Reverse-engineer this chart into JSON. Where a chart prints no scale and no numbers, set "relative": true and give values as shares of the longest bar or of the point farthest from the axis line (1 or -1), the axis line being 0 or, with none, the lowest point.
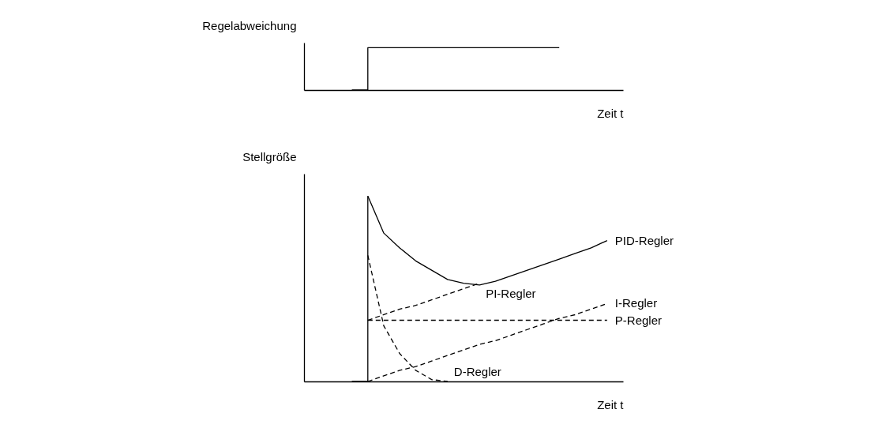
{
  "chart_data": [
    {
      "type": "step",
      "relative": true,
      "ylabel": "Regelabweichung",
      "xlabel": "Zeit t",
      "categories": [
        null,
        null,
        null,
        null,
        null,
        null,
        null,
        null,
        null,
        null,
        null,
        null,
        null,
        null,
        null,
        null,
        null,
        null,
        null,
        null,
        null
      ],
      "series": [
        {
          "color": "#000000",
          "line_style": "solid",
          "values": [
            null,
            null,
            null,
            0,
            1,
            1,
            1,
            1,
            1,
            1,
            1,
            1,
            1,
            1,
            1,
            1,
            1,
            null,
            null,
            null,
            null
          ]
        }
      ]
    },
    {
      "type": "line",
      "relative": true,
      "ylabel": "Stellgröße",
      "xlabel": "Zeit t",
      "categories": [
        null,
        null,
        null,
        null,
        null,
        null,
        null,
        null,
        null,
        null,
        null,
        null,
        null,
        null,
        null,
        null,
        null,
        null,
        null,
        null,
        null
      ],
      "series": [
        {
          "type": "step",
          "color": "#000000",
          "line_style": "solid",
          "values": [
            null,
            null,
            null,
            0,
            1,
            null,
            null,
            null,
            null,
            null,
            null,
            null,
            null,
            null,
            null,
            null,
            null,
            null,
            null,
            null,
            null
          ]
        },
        {
          "name": "PID-Regler",
          "color": "#000000",
          "line_style": "solid",
          "values": [
            null,
            null,
            null,
            null,
            1,
            0.8,
            0.72,
            0.65,
            0.6,
            0.55,
            0.53,
            0.52,
            0.54,
            0.57,
            0.6,
            0.63,
            0.66,
            0.69,
            0.72,
            0.76,
            null
          ]
        },
        {
          "name": "PI-Regler",
          "color": "#000000",
          "line_style": "dashed",
          "values": [
            null,
            null,
            null,
            null,
            0.33,
            0.36,
            0.39,
            0.41,
            0.44,
            0.47,
            0.5,
            0.53,
            null,
            null,
            null,
            null,
            null,
            null,
            null,
            null,
            null
          ]
        },
        {
          "name": "P-Regler",
          "color": "#000000",
          "line_style": "dashed",
          "values": [
            null,
            null,
            null,
            null,
            0.33,
            0.33,
            0.33,
            0.33,
            0.33,
            0.33,
            0.33,
            0.33,
            0.33,
            0.33,
            0.33,
            0.33,
            0.33,
            0.33,
            0.33,
            0.33,
            null
          ]
        },
        {
          "name": "I-Regler",
          "color": "#000000",
          "line_style": "dashed",
          "values": [
            null,
            null,
            null,
            null,
            0,
            0.03,
            0.06,
            0.08,
            0.11,
            0.14,
            0.17,
            0.2,
            0.22,
            0.25,
            0.28,
            0.31,
            0.34,
            0.36,
            0.39,
            0.42,
            null
          ]
        },
        {
          "name": "D-Regler",
          "color": "#000000",
          "line_style": "dashed",
          "values": [
            null,
            null,
            null,
            null,
            0.68,
            0.3,
            0.15,
            0.06,
            0.01,
            0,
            null,
            null,
            null,
            null,
            null,
            null,
            null,
            null,
            null,
            null,
            null
          ]
        }
      ]
    }
  ]
}
